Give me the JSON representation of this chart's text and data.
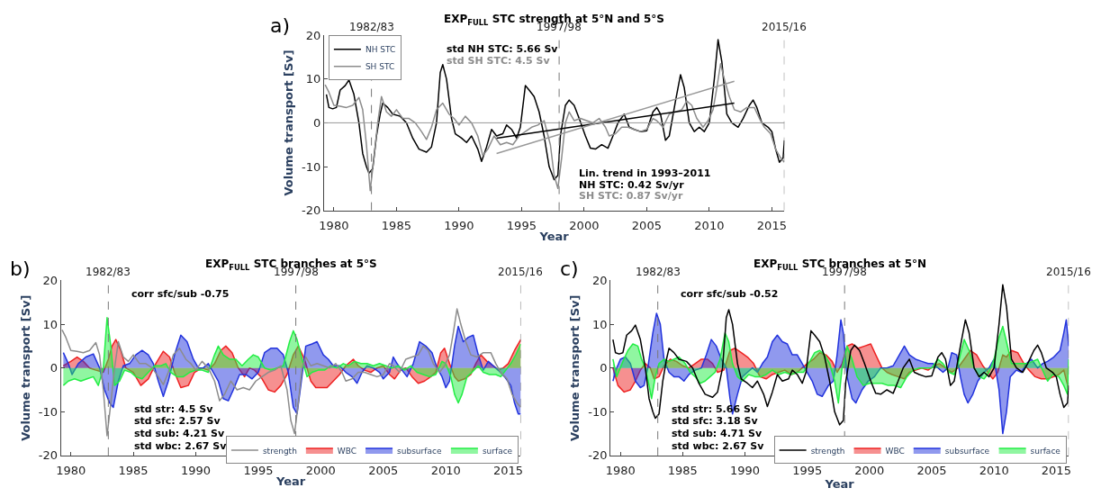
{
  "chart_data": [
    {
      "type": "line",
      "title": "EXP$_{FULL}$ STC strength at 5°N and 5°S",
      "xlabel": "Year",
      "ylabel": "Volume transport [Sv]",
      "xlim": [
        1979.2,
        2016
      ],
      "xticks": [
        1980,
        1985,
        1990,
        1995,
        2000,
        2005,
        2010,
        2015
      ],
      "ylim": [
        -20,
        20
      ],
      "yticks": [
        -20,
        -10,
        0,
        10,
        20
      ],
      "legend": "top left",
      "series": [
        {
          "name": "NH STC",
          "color": "#000000",
          "x": [
            1979.4,
            1979.6,
            1979.9,
            1980.2,
            1980.5,
            1980.9,
            1981.2,
            1981.6,
            1982.0,
            1982.3,
            1982.6,
            1982.8,
            1983.1,
            1983.4,
            1983.7,
            1983.9,
            1984.3,
            1984.7,
            1985.3,
            1985.8,
            1986.3,
            1986.8,
            1987.4,
            1987.8,
            1988.2,
            1988.5,
            1988.7,
            1989.0,
            1989.4,
            1989.7,
            1990.2,
            1990.6,
            1991.0,
            1991.5,
            1991.8,
            1992.2,
            1992.6,
            1993.0,
            1993.5,
            1993.8,
            1994.2,
            1994.6,
            1994.9,
            1995.3,
            1995.6,
            1996.0,
            1996.4,
            1996.8,
            1997.2,
            1997.6,
            1997.9,
            1998.1,
            1998.5,
            1998.8,
            1999.2,
            1999.6,
            2000.1,
            2000.5,
            2000.9,
            2001.4,
            2001.9,
            2002.3,
            2002.7,
            2003.2,
            2003.6,
            2004.0,
            2004.5,
            2005.0,
            2005.5,
            2005.8,
            2006.1,
            2006.5,
            2006.8,
            2007.3,
            2007.7,
            2008.0,
            2008.4,
            2008.8,
            2009.2,
            2009.6,
            2010.0,
            2010.4,
            2010.7,
            2011.0,
            2011.4,
            2011.8,
            2012.3,
            2012.7,
            2013.2,
            2013.5,
            2013.8,
            2014.2,
            2014.7,
            2015.0,
            2015.3,
            2015.6,
            2015.9,
            2016.0
          ],
          "values": [
            6.5,
            3.5,
            3.2,
            3.5,
            7.5,
            8.5,
            9.8,
            6.5,
            0,
            -7,
            -10,
            -11.5,
            -10.5,
            -3,
            2,
            4.5,
            3.5,
            2,
            1.5,
            0,
            -3.5,
            -6,
            -6.7,
            -5.5,
            0,
            11.5,
            13.3,
            10,
            1,
            -2.5,
            -3.5,
            -4.5,
            -3,
            -6,
            -8.8,
            -5.5,
            -1.5,
            -3,
            -2.5,
            -0.5,
            -1.5,
            -3.5,
            -1,
            8.5,
            7.5,
            6,
            2.5,
            -3,
            -10,
            -13,
            -12,
            -3,
            4,
            5.2,
            4,
            1,
            -3,
            -5.8,
            -6,
            -5,
            -5.8,
            -3,
            0,
            2,
            -1,
            -1.5,
            -2,
            -1.8,
            2.5,
            3.5,
            2,
            -4,
            -3,
            5,
            11,
            8,
            0,
            -2,
            -1,
            -2,
            0,
            10,
            19,
            14,
            2,
            0,
            -1,
            1,
            4,
            5.2,
            3.5,
            0,
            -1,
            -2,
            -6,
            -9,
            -8,
            -4
          ]
        },
        {
          "name": "SH STC",
          "color": "#8c8c8c",
          "x": [
            1979.3,
            1979.6,
            1980.0,
            1980.5,
            1981.0,
            1981.5,
            1982.0,
            1982.3,
            1982.6,
            1982.9,
            1983.2,
            1983.5,
            1983.8,
            1984.2,
            1984.6,
            1985.0,
            1985.5,
            1986.0,
            1986.5,
            1987.0,
            1987.4,
            1987.8,
            1988.2,
            1988.7,
            1989.2,
            1989.6,
            1990.0,
            1990.5,
            1991.0,
            1991.5,
            1991.9,
            1992.3,
            1992.8,
            1993.3,
            1993.8,
            1994.3,
            1994.8,
            1995.3,
            1995.8,
            1996.3,
            1996.8,
            1997.3,
            1997.6,
            1997.9,
            1998.2,
            1998.5,
            1998.8,
            1999.2,
            1999.7,
            2000.2,
            2000.7,
            2001.2,
            2001.7,
            2002.0,
            2002.5,
            2003.0,
            2003.5,
            2004.0,
            2004.5,
            2005.0,
            2005.5,
            2005.8,
            2006.3,
            2006.8,
            2007.3,
            2007.8,
            2008.2,
            2008.6,
            2009.0,
            2009.5,
            2009.9,
            2010.3,
            2010.6,
            2010.9,
            2011.2,
            2011.6,
            2012.0,
            2012.5,
            2013.0,
            2013.6,
            2014.0,
            2014.4,
            2014.9,
            2015.3,
            2015.7,
            2016.0
          ],
          "values": [
            8.7,
            7,
            4,
            3.8,
            3.5,
            4,
            5.8,
            3,
            -5,
            -15.5,
            -8,
            0,
            6,
            2.5,
            1.5,
            3,
            1,
            1,
            0,
            -2,
            -3.8,
            -1,
            3,
            4.5,
            2,
            1,
            -0.5,
            1.5,
            0,
            -3,
            -7.5,
            -6,
            -3,
            -5,
            -4.5,
            -5,
            -3,
            -2,
            -1,
            -0.5,
            0.5,
            -5,
            -12,
            -15,
            -8,
            0,
            2.5,
            0.5,
            1,
            0.5,
            0,
            1,
            -1,
            -3,
            -2.5,
            -1,
            -1,
            -1.5,
            -2,
            -1.5,
            1,
            0.5,
            -1,
            2,
            2.5,
            3,
            5,
            4,
            1,
            -1,
            0.5,
            3,
            8,
            13.5,
            10,
            6,
            3,
            2.5,
            3.5,
            3.5,
            1,
            -1,
            -2.5,
            -6,
            -8,
            -9
          ]
        },
        {
          "color": "#000000",
          "x": [
            1993,
            2012
          ],
          "values": [
            -3.5,
            4.5
          ]
        },
        {
          "color": "#999999",
          "x": [
            1993,
            2012
          ],
          "values": [
            -7,
            9.5
          ]
        }
      ],
      "ref_lines": [
        {
          "axis": "y",
          "value": 0,
          "color": "#999999",
          "line_style": "solid"
        },
        {
          "axis": "x",
          "value": 1983,
          "color": "#777777",
          "line_style": "dashed"
        },
        {
          "axis": "x",
          "value": 1998,
          "color": "#777777",
          "line_style": "dashed"
        },
        {
          "axis": "x",
          "value": 2016,
          "color": "#777777",
          "line_style": "dashed"
        }
      ],
      "annotations": [
        "a)",
        "std NH STC: 5.66 Sv",
        "std SH STC: 4.5 Sv",
        "Lin. trend in 1993–2011",
        "NH STC: 0.42 Sv/yr",
        "SH STC: 0.87 Sv/yr",
        {
          "text": "1982/83",
          "x": 1983,
          "y": 20
        },
        {
          "text": "1997/98",
          "x": 1998,
          "y": 20
        },
        {
          "text": "2015/16",
          "x": 2016,
          "y": 20
        }
      ]
    },
    {
      "type": "area",
      "title": "EXP$_{FULL}$ STC branches at 5°S",
      "xlabel": "Year",
      "ylabel": "Volume transport [Sv]",
      "xlim": [
        1979.2,
        2016
      ],
      "xticks": [
        1980,
        1985,
        1990,
        1995,
        2000,
        2005,
        2010,
        2015
      ],
      "ylim": [
        -20,
        20
      ],
      "yticks": [
        -20,
        -10,
        0,
        10,
        20
      ],
      "legend": "bottom right",
      "series": [
        {
          "name": "strength",
          "type": "line",
          "color": "#8c8c8c",
          "x": [
            1979.3,
            1979.6,
            1980.0,
            1980.5,
            1981.0,
            1981.5,
            1982.0,
            1982.3,
            1982.6,
            1982.9,
            1983.2,
            1983.5,
            1983.8,
            1984.2,
            1984.6,
            1985.0,
            1985.5,
            1986.0,
            1986.5,
            1987.0,
            1987.4,
            1987.8,
            1988.2,
            1988.7,
            1989.2,
            1989.6,
            1990.0,
            1990.5,
            1991.0,
            1991.5,
            1991.9,
            1992.3,
            1992.8,
            1993.3,
            1993.8,
            1994.3,
            1994.8,
            1995.3,
            1995.8,
            1996.3,
            1996.8,
            1997.3,
            1997.6,
            1997.9,
            1998.2,
            1998.5,
            1998.8,
            1999.2,
            1999.7,
            2000.2,
            2000.7,
            2001.2,
            2001.7,
            2002.0,
            2002.5,
            2003.0,
            2003.5,
            2004.0,
            2004.5,
            2005.0,
            2005.5,
            2005.8,
            2006.3,
            2006.8,
            2007.3,
            2007.8,
            2008.2,
            2008.6,
            2009.0,
            2009.5,
            2009.9,
            2010.3,
            2010.6,
            2010.9,
            2011.2,
            2011.6,
            2012.0,
            2012.5,
            2013.0,
            2013.6,
            2014.0,
            2014.4,
            2014.9,
            2015.3,
            2015.7,
            2016.0
          ],
          "values": [
            8.7,
            7,
            4,
            3.8,
            3.5,
            4,
            5.8,
            3,
            -5,
            -15.5,
            -8,
            0,
            6,
            2.5,
            1.5,
            3,
            1,
            1,
            0,
            -2,
            -3.8,
            -1,
            3,
            4.5,
            2,
            1,
            -0.5,
            1.5,
            0,
            -3,
            -7.5,
            -6,
            -3,
            -5,
            -4.5,
            -5,
            -3,
            -2,
            -1,
            -0.5,
            0.5,
            -5,
            -12,
            -15,
            -8,
            0,
            2.5,
            0.5,
            1,
            0.5,
            0,
            1,
            -1,
            -3,
            -2.5,
            -1,
            -1,
            -1.5,
            -2,
            -1.5,
            1,
            0.5,
            -1,
            2,
            2.5,
            3,
            5,
            4,
            1,
            -1,
            0.5,
            3,
            8,
            13.5,
            10,
            6,
            3,
            2.5,
            3.5,
            3.5,
            1,
            -1,
            -2.5,
            -6,
            -8,
            -9
          ]
        },
        {
          "name": "WBC",
          "color": "#ee2222",
          "x": [
            1979.4,
            1980.0,
            1980.5,
            1981.0,
            1981.5,
            1982.0,
            1982.6,
            1983.0,
            1983.3,
            1983.6,
            1984.0,
            1984.4,
            1985.0,
            1985.6,
            1986.2,
            1986.8,
            1987.4,
            1987.9,
            1988.3,
            1988.8,
            1989.4,
            1989.9,
            1990.5,
            1991.0,
            1991.5,
            1992.0,
            1992.4,
            1992.9,
            1993.4,
            1993.9,
            1994.3,
            1994.7,
            1995.2,
            1995.8,
            1996.3,
            1996.8,
            1997.3,
            1997.8,
            1998.2,
            1998.7,
            1999.2,
            1999.6,
            2000.0,
            2000.5,
            2001.0,
            2001.5,
            2002.0,
            2002.6,
            2003.0,
            2003.5,
            2004.0,
            2004.5,
            2005.0,
            2005.5,
            2005.9,
            2006.4,
            2006.8,
            2007.3,
            2007.8,
            2008.3,
            2008.8,
            2009.2,
            2009.6,
            2009.9,
            2010.3,
            2010.7,
            2011.0,
            2011.5,
            2012.0,
            2012.4,
            2012.8,
            2013.3,
            2013.8,
            2014.2,
            2014.6,
            2015.0,
            2015.5,
            2016.0
          ],
          "values": [
            0.5,
            1.5,
            2.5,
            1.5,
            0,
            -0.5,
            -1,
            2,
            5,
            6.5,
            4,
            0,
            -1,
            -4,
            -2.5,
            1,
            3.8,
            2.5,
            -1,
            -4.5,
            -4,
            -1,
            0,
            -0.5,
            1,
            4,
            5,
            3.5,
            0,
            -2,
            0,
            -0.5,
            -2,
            -5,
            -5.5,
            -4,
            -1.5,
            3,
            5,
            2,
            -3,
            -4.5,
            -4.5,
            -4.5,
            -3,
            -1.5,
            0.5,
            2,
            0.5,
            -0.5,
            -1,
            0,
            0.5,
            -1.5,
            -2.5,
            -0.5,
            0,
            -2,
            -3.5,
            -3,
            -2,
            -1,
            3.5,
            4.5,
            1,
            -2,
            -3,
            -2.5,
            -1.5,
            1,
            3,
            1.5,
            0.5,
            -0.5,
            0,
            1,
            4,
            6.5
          ]
        },
        {
          "name": "subsurface",
          "color": "#2233dd",
          "x": [
            1979.4,
            1979.8,
            1980.1,
            1980.6,
            1981.2,
            1981.8,
            1982.3,
            1982.7,
            1983.1,
            1983.4,
            1983.8,
            1984.2,
            1984.7,
            1985.2,
            1985.7,
            1986.2,
            1986.6,
            1987.0,
            1987.4,
            1987.8,
            1988.3,
            1988.8,
            1989.3,
            1989.8,
            1990.2,
            1990.6,
            1991.0,
            1991.4,
            1991.8,
            1992.2,
            1992.6,
            1993.0,
            1993.5,
            1994.0,
            1994.5,
            1995.0,
            1995.5,
            1996.0,
            1996.5,
            1997.0,
            1997.4,
            1997.8,
            1998.1,
            1998.4,
            1998.8,
            1999.3,
            1999.7,
            2000.2,
            2000.6,
            2001.0,
            2001.5,
            2002.0,
            2002.5,
            2002.9,
            2003.3,
            2003.7,
            2004.2,
            2004.7,
            2005.0,
            2005.5,
            2005.8,
            2006.1,
            2006.5,
            2006.9,
            2007.4,
            2007.9,
            2008.4,
            2008.9,
            2009.3,
            2009.7,
            2010.0,
            2010.3,
            2010.7,
            2011.0,
            2011.4,
            2011.8,
            2012.2,
            2012.6,
            2013.0,
            2013.4,
            2013.8,
            2014.2,
            2014.7,
            2015.2,
            2015.5,
            2015.8,
            2016.0
          ],
          "values": [
            3.5,
            1,
            -1.5,
            1,
            2.5,
            3.2,
            0,
            -5,
            -8,
            -9,
            -3,
            0.5,
            1,
            3,
            4,
            3,
            1,
            -3,
            -6.5,
            -3,
            3,
            7.5,
            6,
            2,
            0,
            0,
            1,
            -1,
            -3,
            -7,
            -7.5,
            -5,
            -1.5,
            -1.5,
            -2.5,
            -1,
            3.5,
            4.5,
            4.5,
            3,
            -1,
            -9,
            -10.5,
            -4,
            5,
            5.5,
            6,
            3,
            2,
            0.5,
            0.5,
            -1,
            -2,
            -3.5,
            -1,
            0.5,
            0,
            -1,
            -2.5,
            -1,
            2.5,
            1,
            -0.5,
            -2,
            1,
            6,
            5,
            3.5,
            0,
            -2,
            -4.5,
            -3,
            5,
            9.5,
            6,
            7,
            7.5,
            3,
            -0.5,
            1.5,
            0.5,
            -0.5,
            -2,
            -4,
            -8,
            -10.5,
            -10.5
          ]
        },
        {
          "name": "surface",
          "color": "#22ee44",
          "x": [
            1979.4,
            1979.8,
            1980.3,
            1980.8,
            1981.3,
            1981.8,
            1982.2,
            1982.6,
            1982.9,
            1983.2,
            1983.5,
            1983.9,
            1984.3,
            1984.8,
            1985.2,
            1985.7,
            1986.2,
            1986.7,
            1987.2,
            1987.6,
            1988.0,
            1988.5,
            1989.0,
            1989.5,
            1990.0,
            1990.5,
            1991.0,
            1991.5,
            1991.8,
            1992.2,
            1992.7,
            1993.2,
            1993.7,
            1994.2,
            1994.6,
            1995.0,
            1995.5,
            1996.0,
            1996.5,
            1997.0,
            1997.5,
            1997.8,
            1998.1,
            1998.5,
            1998.9,
            1999.3,
            1999.8,
            2000.3,
            2000.8,
            2001.3,
            2001.8,
            2002.2,
            2002.7,
            2003.2,
            2003.7,
            2004.2,
            2004.7,
            2005.2,
            2005.7,
            2006.2,
            2006.7,
            2007.2,
            2007.7,
            2008.2,
            2008.7,
            2009.2,
            2009.7,
            2010.0,
            2010.4,
            2010.7,
            2011.0,
            2011.3,
            2011.7,
            2012.1,
            2012.6,
            2013.0,
            2013.5,
            2014.0,
            2014.4,
            2014.8,
            2015.2,
            2015.6,
            2016.0
          ],
          "values": [
            -4,
            -3,
            -2.5,
            -3,
            -2.5,
            -2,
            -4,
            0,
            11.5,
            5,
            -4,
            -3,
            -0.5,
            -1,
            -2,
            -2.5,
            -1,
            0.5,
            0.5,
            1,
            -1,
            -2,
            -2,
            -1,
            -0.5,
            -0.5,
            -1,
            3,
            5,
            3,
            2,
            2,
            0.5,
            2,
            3,
            2.5,
            0,
            -0.5,
            0,
            0.5,
            6,
            8.5,
            6.5,
            2,
            -2,
            -1,
            -0.5,
            -0.5,
            0.5,
            0,
            1,
            0.5,
            1.5,
            1,
            1,
            0.5,
            1,
            0.5,
            0,
            0.5,
            -0.5,
            0.5,
            -1,
            -1.5,
            -2,
            -1.5,
            1.5,
            1,
            -2,
            -6,
            -8,
            -6,
            -2,
            -1,
            0.5,
            -1,
            -1.5,
            -1.5,
            -2,
            -0.5,
            1,
            3,
            5.5
          ]
        }
      ],
      "ref_lines": [
        {
          "axis": "x",
          "value": 1983,
          "color": "#777777",
          "line_style": "dashed"
        },
        {
          "axis": "x",
          "value": 1998,
          "color": "#777777",
          "line_style": "dashed"
        },
        {
          "axis": "x",
          "value": 2016,
          "color": "#777777",
          "line_style": "dashed"
        }
      ],
      "annotations": [
        "b)",
        "corr sfc/sub -0.75",
        "std str: 4.5 Sv",
        "std sfc: 2.57 Sv",
        "std sub: 4.21 Sv",
        "std wbc: 2.67 Sv",
        {
          "text": "1982/83",
          "x": 1983,
          "y": 20
        },
        {
          "text": "1997/98",
          "x": 1998,
          "y": 20
        },
        {
          "text": "2015/16",
          "x": 2016,
          "y": 20
        }
      ]
    },
    {
      "type": "area",
      "title": "EXP$_{FULL}$ STC branches at 5°N",
      "xlabel": "Year",
      "ylabel": "Volume transport [Sv]",
      "xlim": [
        1979.2,
        2016
      ],
      "xticks": [
        1980,
        1985,
        1990,
        1995,
        2000,
        2005,
        2010,
        2015
      ],
      "ylim": [
        -20,
        20
      ],
      "yticks": [
        -20,
        -10,
        0,
        10,
        20
      ],
      "legend": "bottom right",
      "series": [
        {
          "name": "strength",
          "type": "line",
          "color": "#000000",
          "x": [
            1979.4,
            1979.6,
            1979.9,
            1980.2,
            1980.5,
            1980.9,
            1981.2,
            1981.6,
            1982.0,
            1982.3,
            1982.6,
            1982.8,
            1983.1,
            1983.4,
            1983.7,
            1983.9,
            1984.3,
            1984.7,
            1985.3,
            1985.8,
            1986.3,
            1986.8,
            1987.4,
            1987.8,
            1988.2,
            1988.5,
            1988.7,
            1989.0,
            1989.4,
            1989.7,
            1990.2,
            1990.6,
            1991.0,
            1991.5,
            1991.8,
            1992.2,
            1992.6,
            1993.0,
            1993.5,
            1993.8,
            1994.2,
            1994.6,
            1994.9,
            1995.3,
            1995.6,
            1996.0,
            1996.4,
            1996.8,
            1997.2,
            1997.6,
            1997.9,
            1998.1,
            1998.5,
            1998.8,
            1999.2,
            1999.6,
            2000.1,
            2000.5,
            2000.9,
            2001.4,
            2001.9,
            2002.3,
            2002.7,
            2003.2,
            2003.6,
            2004.0,
            2004.5,
            2005.0,
            2005.5,
            2005.8,
            2006.1,
            2006.5,
            2006.8,
            2007.3,
            2007.7,
            2008.0,
            2008.4,
            2008.8,
            2009.2,
            2009.6,
            2010.0,
            2010.4,
            2010.7,
            2011.0,
            2011.4,
            2011.8,
            2012.3,
            2012.7,
            2013.2,
            2013.5,
            2013.8,
            2014.2,
            2014.7,
            2015.0,
            2015.3,
            2015.6,
            2015.9,
            2016.0
          ],
          "values": [
            6.5,
            3.5,
            3.2,
            3.5,
            7.5,
            8.5,
            9.8,
            6.5,
            0,
            -7,
            -10,
            -11.5,
            -10.5,
            -3,
            2,
            4.5,
            3.5,
            2,
            1.5,
            0,
            -3.5,
            -6,
            -6.7,
            -5.5,
            0,
            11.5,
            13.3,
            10,
            1,
            -2.5,
            -3.5,
            -4.5,
            -3,
            -6,
            -8.8,
            -5.5,
            -1.5,
            -3,
            -2.5,
            -0.5,
            -1.5,
            -3.5,
            -1,
            8.5,
            7.5,
            6,
            2.5,
            -3,
            -10,
            -13,
            -12,
            -3,
            4,
            5.2,
            4,
            1,
            -3,
            -5.8,
            -6,
            -5,
            -5.8,
            -3,
            0,
            2,
            -1,
            -1.5,
            -2,
            -1.8,
            2.5,
            3.5,
            2,
            -4,
            -3,
            5,
            11,
            8,
            0,
            -2,
            -1,
            -2,
            0,
            10,
            19,
            14,
            2,
            0,
            -1,
            1,
            4,
            5.2,
            3.5,
            0,
            -1,
            -2,
            -6,
            -9,
            -8,
            -4
          ]
        },
        {
          "name": "WBC",
          "color": "#ee2222",
          "x": [
            1979.4,
            1979.8,
            1980.3,
            1980.8,
            1981.2,
            1981.6,
            1982.0,
            1982.4,
            1982.7,
            1983.1,
            1983.5,
            1984.0,
            1984.5,
            1985.0,
            1985.5,
            1986.0,
            1986.5,
            1987.0,
            1987.4,
            1987.8,
            1988.3,
            1988.8,
            1989.2,
            1989.7,
            1990.2,
            1990.7,
            1991.2,
            1991.7,
            1992.2,
            1992.7,
            1993.2,
            1993.7,
            1994.2,
            1994.6,
            1995.0,
            1995.5,
            1996.0,
            1996.5,
            1997.0,
            1997.4,
            1997.8,
            1998.2,
            1998.6,
            1999.1,
            1999.6,
            2000.1,
            2000.5,
            2001.0,
            2001.4,
            2001.8,
            2002.3,
            2002.8,
            2003.2,
            2003.7,
            2004.2,
            2004.7,
            2005.2,
            2005.6,
            2006.1,
            2006.6,
            2007.1,
            2007.6,
            2008.1,
            2008.6,
            2009.1,
            2009.5,
            2009.9,
            2010.3,
            2010.7,
            2011.0,
            2011.4,
            2011.9,
            2012.4,
            2012.8,
            2013.3,
            2013.8,
            2014.3,
            2014.8,
            2015.2,
            2015.6,
            2016.0
          ],
          "values": [
            0,
            -4,
            -5.5,
            -5,
            -3,
            -0.5,
            1,
            0,
            -2.5,
            -2,
            0.5,
            2,
            1.5,
            0.5,
            0,
            1,
            2,
            2,
            1,
            -1,
            -0.5,
            4,
            4.5,
            3.5,
            2.5,
            1,
            -2,
            -2.5,
            -1.5,
            -1,
            -0.5,
            -1.5,
            -1,
            0,
            1,
            2,
            3.5,
            3,
            1.5,
            -1,
            1,
            5,
            5.5,
            4.5,
            5,
            5.5,
            3,
            0,
            -1,
            -1.5,
            -2,
            -2.5,
            -1,
            -0.5,
            0,
            -0.5,
            0.5,
            1,
            0,
            -1,
            0,
            2,
            4,
            3,
            0.5,
            -1,
            -2.5,
            -1,
            3,
            2.5,
            4,
            3.5,
            1,
            -0.5,
            -2,
            -2.5,
            -2.5,
            -2,
            -1.5,
            -0.5,
            -5
          ]
        },
        {
          "name": "subsurface",
          "color": "#2233dd",
          "x": [
            1979.4,
            1979.7,
            1980.0,
            1980.4,
            1980.8,
            1981.2,
            1981.6,
            1981.9,
            1982.2,
            1982.6,
            1982.9,
            1983.2,
            1983.5,
            1983.9,
            1984.3,
            1984.7,
            1985.1,
            1985.5,
            1986.0,
            1986.5,
            1986.9,
            1987.3,
            1987.7,
            1988.1,
            1988.5,
            1988.8,
            1989.0,
            1989.4,
            1989.8,
            1990.2,
            1990.6,
            1991.0,
            1991.4,
            1991.8,
            1992.2,
            1992.6,
            1993.0,
            1993.4,
            1993.8,
            1994.2,
            1994.6,
            1995.0,
            1995.4,
            1995.8,
            1996.2,
            1996.7,
            1997.1,
            1997.4,
            1997.7,
            1997.9,
            1998.2,
            1998.6,
            1998.9,
            1999.4,
            1999.9,
            2000.4,
            2000.9,
            2001.4,
            2001.9,
            2002.4,
            2002.8,
            2003.2,
            2003.7,
            2004.2,
            2004.7,
            2005.1,
            2005.5,
            2005.9,
            2006.3,
            2006.6,
            2007.0,
            2007.3,
            2007.6,
            2007.9,
            2008.3,
            2008.7,
            2009.2,
            2009.6,
            2010.0,
            2010.4,
            2010.7,
            2011.0,
            2011.3,
            2011.8,
            2012.2,
            2012.6,
            2013.0,
            2013.5,
            2013.9,
            2014.3,
            2014.8,
            2015.3,
            2015.6,
            2015.8,
            2016.0
          ],
          "values": [
            -3,
            0,
            2,
            2.5,
            1,
            -3,
            -4.5,
            -4,
            0,
            8,
            12.5,
            10,
            2,
            -1,
            -2,
            -2,
            -3,
            -1.5,
            -0.5,
            0,
            3,
            6.5,
            5,
            2,
            0,
            -7,
            -10.5,
            -6,
            -2,
            -1,
            0,
            -1,
            1,
            2.5,
            6,
            7.5,
            6,
            5.5,
            3,
            3,
            1,
            -1,
            -3,
            -6,
            -6.5,
            -4,
            -3,
            3,
            11,
            8,
            -2,
            -7,
            -8,
            -5,
            -3,
            -2,
            0,
            0,
            0.5,
            3,
            5,
            3,
            2,
            1.5,
            1,
            1,
            0,
            -1,
            0,
            3.5,
            3,
            -2,
            -6,
            -8,
            -6,
            -3,
            -1,
            0,
            2,
            -5,
            -15,
            -10,
            -2,
            -0.5,
            -1,
            1,
            2,
            0,
            1,
            1.5,
            2.5,
            4,
            8,
            11,
            5
          ]
        },
        {
          "name": "surface",
          "color": "#22ee44",
          "x": [
            1979.4,
            1979.7,
            1980.2,
            1980.6,
            1981.0,
            1981.4,
            1981.7,
            1982.0,
            1982.3,
            1982.5,
            1982.8,
            1983.1,
            1983.5,
            1983.9,
            1984.3,
            1984.7,
            1985.2,
            1985.6,
            1986.0,
            1986.4,
            1986.8,
            1987.2,
            1987.6,
            1988.0,
            1988.4,
            1988.7,
            1989.0,
            1989.4,
            1989.8,
            1990.3,
            1990.8,
            1991.3,
            1991.7,
            1992.2,
            1992.7,
            1993.2,
            1993.7,
            1994.2,
            1994.7,
            1995.1,
            1995.6,
            1996.0,
            1996.4,
            1996.8,
            1997.2,
            1997.5,
            1997.8,
            1998.2,
            1998.6,
            1999.0,
            1999.5,
            2000.0,
            2000.5,
            2001.0,
            2001.5,
            2002.0,
            2002.5,
            2003.0,
            2003.5,
            2004.0,
            2004.5,
            2005.0,
            2005.5,
            2005.9,
            2006.4,
            2006.8,
            2007.2,
            2007.6,
            2008.0,
            2008.4,
            2008.8,
            2009.2,
            2009.6,
            2010.0,
            2010.4,
            2010.7,
            2011.0,
            2011.4,
            2011.8,
            2012.2,
            2012.7,
            2013.1,
            2013.5,
            2013.9,
            2014.3,
            2014.7,
            2015.2,
            2015.6,
            2015.9,
            2016.0
          ],
          "values": [
            2,
            -2,
            1.5,
            4,
            5.5,
            5,
            2,
            0,
            -4,
            -7,
            -2,
            1,
            2,
            1.5,
            2,
            2.5,
            1,
            -1,
            -2,
            -3.5,
            -3,
            -2,
            -1,
            2,
            8,
            6,
            1,
            -2,
            -3,
            -1.5,
            -2,
            -2,
            -1.5,
            -0.5,
            -1.5,
            -1,
            -1.5,
            -1,
            -1,
            1,
            3.5,
            4,
            3,
            1,
            -3,
            -8,
            0,
            5,
            2,
            -2,
            -4,
            -3.5,
            -3.5,
            -3.5,
            -4,
            -4,
            -4.5,
            -2,
            -0.5,
            0,
            0,
            0,
            2,
            1,
            -1,
            -1.5,
            2,
            6.5,
            4,
            0,
            -2,
            -2.5,
            -1,
            2,
            7,
            9.5,
            6,
            1,
            1,
            1,
            1,
            1.5,
            2,
            -0.5,
            -3,
            -1.5,
            -2,
            -4,
            -6,
            2
          ]
        }
      ],
      "ref_lines": [
        {
          "axis": "x",
          "value": 1983,
          "color": "#777777",
          "line_style": "dashed"
        },
        {
          "axis": "x",
          "value": 1998,
          "color": "#777777",
          "line_style": "dashed"
        },
        {
          "axis": "x",
          "value": 2016,
          "color": "#777777",
          "line_style": "dashed"
        }
      ],
      "annotations": [
        "c)",
        "corr sfc/sub -0.52",
        "std str: 5.66 Sv",
        "std sfc: 3.18 Sv",
        "std sub: 4.71 Sv",
        "std wbc: 2.67 Sv",
        {
          "text": "1982/83",
          "x": 1983,
          "y": 20
        },
        {
          "text": "1997/98",
          "x": 1998,
          "y": 20
        },
        {
          "text": "2015/16",
          "x": 2016,
          "y": 20
        }
      ]
    }
  ]
}
